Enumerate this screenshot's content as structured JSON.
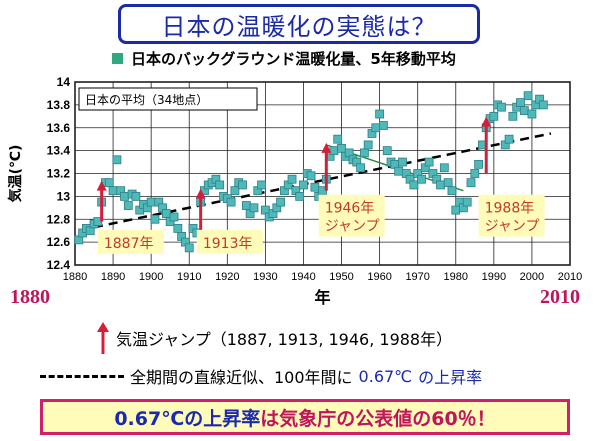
{
  "title": "日本の温暖化の実態は？",
  "legend_text": "日本のバックグラウンド温暖化量、5年移動平均",
  "colors": {
    "title": "#1a2aa8",
    "marker": "#4fb8b8",
    "jump": "#d41f3a",
    "trend": "#2a8a3a",
    "accent_pink": "#c0155c",
    "accent_blue": "#1a2ab0",
    "box_fill": "#fffbb8"
  },
  "year_start_label": "1880",
  "year_end_label": "2010",
  "notes": {
    "jump_line": "気温ジャンプ（1887, 1913, 1946, 1988年）",
    "trend_line_prefix": "全期間の直線近似、100年間に",
    "trend_line_value": "0.67℃",
    "trend_line_suffix": "の上昇率"
  },
  "bottom": {
    "part1": "0.67℃の上昇率",
    "part2": "は気象庁の公表値の60％！"
  },
  "chart_data": {
    "type": "scatter",
    "inset_label": "日本の平均（34地点）",
    "xlabel": "年",
    "ylabel": "気温(℃)",
    "xlim": [
      1880,
      2010
    ],
    "ylim": [
      12.4,
      14.0
    ],
    "x_ticks": [
      1880,
      1890,
      1900,
      1910,
      1920,
      1930,
      1940,
      1950,
      1960,
      1970,
      1980,
      1990,
      2000,
      2010
    ],
    "y_ticks": [
      12.4,
      12.6,
      12.8,
      13.0,
      13.2,
      13.4,
      13.6,
      13.8,
      14.0
    ],
    "grid": true,
    "series": [
      {
        "x": [
          1881,
          1882,
          1883,
          1884,
          1885,
          1886,
          1887,
          1888,
          1889,
          1890,
          1891,
          1892,
          1893,
          1894,
          1895,
          1896,
          1897,
          1898,
          1899,
          1900,
          1901,
          1902,
          1903,
          1904,
          1905,
          1906,
          1907,
          1908,
          1909,
          1910,
          1911,
          1912,
          1913,
          1914,
          1915,
          1916,
          1917,
          1918,
          1919,
          1920,
          1921,
          1922,
          1923,
          1924,
          1925,
          1926,
          1927,
          1928,
          1929,
          1930,
          1931,
          1932,
          1933,
          1934,
          1935,
          1936,
          1937,
          1938,
          1939,
          1940,
          1941,
          1942,
          1943,
          1944,
          1945,
          1946,
          1947,
          1948,
          1949,
          1950,
          1951,
          1952,
          1953,
          1954,
          1955,
          1956,
          1957,
          1958,
          1959,
          1960,
          1961,
          1962,
          1963,
          1964,
          1965,
          1966,
          1967,
          1968,
          1969,
          1970,
          1971,
          1972,
          1973,
          1974,
          1975,
          1976,
          1977,
          1978,
          1979,
          1980,
          1981,
          1982,
          1983,
          1984,
          1985,
          1986,
          1987,
          1988,
          1989,
          1990,
          1991,
          1992,
          1993,
          1994,
          1995,
          1996,
          1997,
          1998,
          1999,
          2000,
          2001,
          2002,
          2003
        ],
        "y": [
          12.62,
          12.68,
          12.72,
          12.7,
          12.76,
          12.78,
          12.95,
          13.12,
          13.12,
          13.05,
          13.32,
          13.05,
          13.0,
          12.92,
          13.02,
          13.0,
          12.88,
          12.93,
          12.9,
          12.95,
          12.8,
          12.95,
          12.9,
          12.85,
          12.78,
          12.82,
          12.72,
          12.65,
          12.6,
          12.55,
          12.72,
          12.68,
          12.95,
          13.05,
          13.1,
          13.12,
          13.15,
          13.1,
          13.0,
          12.98,
          12.95,
          13.05,
          13.12,
          13.1,
          12.92,
          12.85,
          12.9,
          13.05,
          13.1,
          12.88,
          12.82,
          12.85,
          12.9,
          12.95,
          13.05,
          13.1,
          13.15,
          13.05,
          13.0,
          13.1,
          13.2,
          13.18,
          13.08,
          13.0,
          13.05,
          13.15,
          13.35,
          13.4,
          13.5,
          13.42,
          13.35,
          13.38,
          13.32,
          13.3,
          13.25,
          13.38,
          13.45,
          13.55,
          13.6,
          13.72,
          13.62,
          13.4,
          13.3,
          13.28,
          13.22,
          13.3,
          13.2,
          13.15,
          13.1,
          13.2,
          13.15,
          13.25,
          13.3,
          13.2,
          13.15,
          13.1,
          13.25,
          13.12,
          13.05,
          12.88,
          12.95,
          12.9,
          12.95,
          13.12,
          13.2,
          13.28,
          13.45,
          13.6,
          13.68,
          13.7,
          13.8,
          13.78,
          13.45,
          13.5,
          13.7,
          13.78,
          13.82,
          13.75,
          13.88,
          13.72,
          13.8,
          13.85,
          13.8
        ]
      }
    ],
    "jumps": [
      {
        "year": 1887,
        "from": 12.78,
        "to": 13.12,
        "label": "1887年"
      },
      {
        "year": 1913,
        "from": 12.62,
        "to": 13.05,
        "label": "1913年"
      },
      {
        "year": 1946,
        "from": 13.05,
        "to": 13.45,
        "label": "1946年\nジャンプ"
      },
      {
        "year": 1988,
        "from": 13.2,
        "to": 13.68,
        "label": "1988年\nジャンプ"
      }
    ],
    "trend_line": {
      "x": [
        1885,
        2005
      ],
      "y": [
        12.73,
        13.55
      ]
    }
  }
}
